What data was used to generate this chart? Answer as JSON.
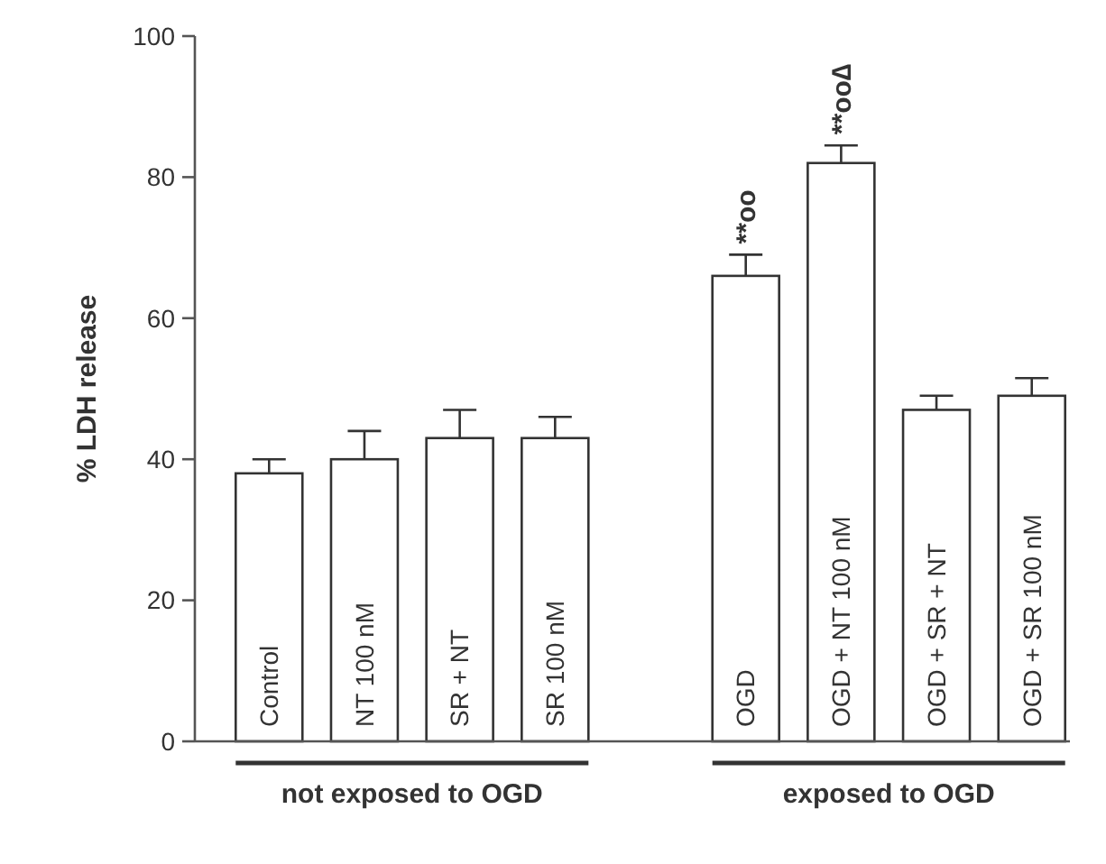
{
  "chart_data": {
    "type": "bar",
    "ylabel": "% LDH release",
    "categories": [
      "Control",
      "NT 100 nM",
      "SR + NT",
      "SR 100 nM",
      null,
      "OGD",
      "OGD + NT 100 nM",
      "OGD + SR + NT",
      "OGD + SR 100 nM"
    ],
    "values": [
      38,
      40,
      43,
      43,
      null,
      66,
      82,
      47,
      49
    ],
    "errors": [
      2,
      4,
      4,
      3,
      null,
      3,
      2.5,
      2,
      2.5
    ],
    "color": "#ffffff",
    "ylim": [
      0,
      100
    ],
    "yticks": [
      0,
      20,
      40,
      60,
      80,
      100
    ],
    "grid": false,
    "annotations": [
      "not exposed to OGD",
      "exposed to OGD",
      {
        "text": "**oo",
        "x": "OGD",
        "y": 69
      },
      {
        "text": "**oo∆",
        "x": "OGD + NT 100 nM",
        "y": 84.5
      }
    ]
  }
}
